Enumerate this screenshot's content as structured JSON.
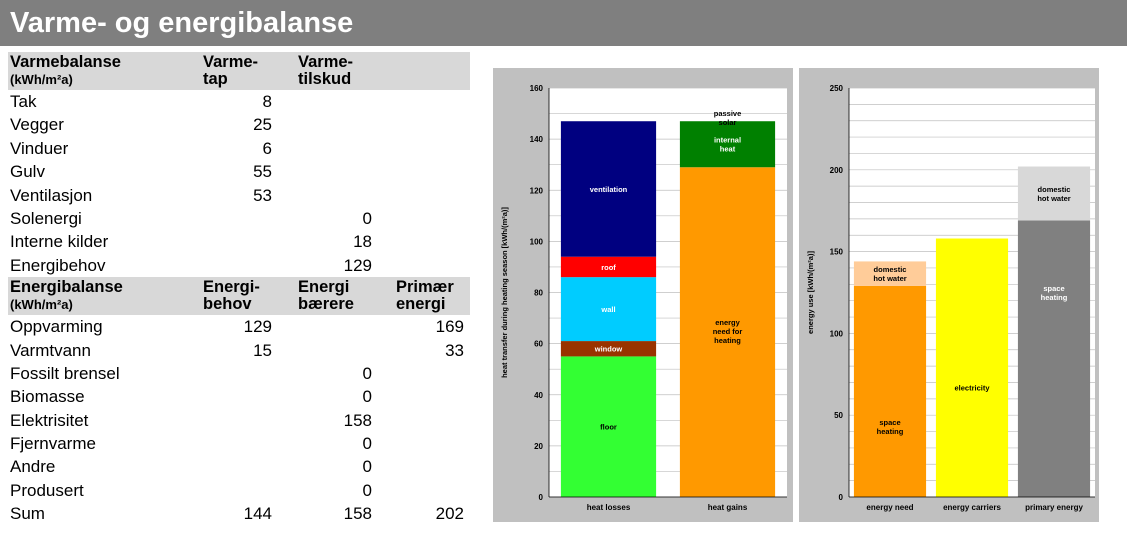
{
  "title": "Varme- og energibalanse",
  "heat_table": {
    "header": {
      "col0": "Varmebalanse",
      "col0_sub": "(kWh/m²a)",
      "col1a": "Varme-",
      "col1b": "tap",
      "col2a": "Varme-",
      "col2b": "tilskud"
    },
    "rows": [
      {
        "label": "Tak",
        "tap": "8",
        "tilskud": ""
      },
      {
        "label": "Vegger",
        "tap": "25",
        "tilskud": ""
      },
      {
        "label": "Vinduer",
        "tap": "6",
        "tilskud": ""
      },
      {
        "label": "Gulv",
        "tap": "55",
        "tilskud": ""
      },
      {
        "label": "Ventilasjon",
        "tap": "53",
        "tilskud": ""
      },
      {
        "label": "Solenergi",
        "tap": "",
        "tilskud": "0"
      },
      {
        "label": "Interne kilder",
        "tap": "",
        "tilskud": "18"
      },
      {
        "label": "Energibehov",
        "tap": "",
        "tilskud": "129"
      }
    ]
  },
  "energy_table": {
    "header": {
      "col0": "Energibalanse",
      "col0_sub": "(kWh/m²a)",
      "col1a": "Energi-",
      "col1b": "behov",
      "col2a": "Energi",
      "col2b": "bærere",
      "col3a": "Primær",
      "col3b": "energi"
    },
    "rows": [
      {
        "label": "Oppvarming",
        "behov": "129",
        "baerere": "",
        "primaer": "169"
      },
      {
        "label": "Varmtvann",
        "behov": "15",
        "baerere": "",
        "primaer": "33"
      },
      {
        "label": "Fossilt brensel",
        "behov": "",
        "baerere": "0",
        "primaer": ""
      },
      {
        "label": "Biomasse",
        "behov": "",
        "baerere": "0",
        "primaer": ""
      },
      {
        "label": "Elektrisitet",
        "behov": "",
        "baerere": "158",
        "primaer": ""
      },
      {
        "label": "Fjernvarme",
        "behov": "",
        "baerere": "0",
        "primaer": ""
      },
      {
        "label": "Andre",
        "behov": "",
        "baerere": "0",
        "primaer": ""
      },
      {
        "label": "Produsert",
        "behov": "",
        "baerere": "0",
        "primaer": ""
      },
      {
        "label": "Sum",
        "behov": "144",
        "baerere": "158",
        "primaer": "202"
      }
    ]
  },
  "chart_data": [
    {
      "type": "bar",
      "stacked": true,
      "ylabel": "heat transfer during heating season [kWh/(m²a)]",
      "ylim": [
        0,
        160
      ],
      "yticks": [
        0,
        20,
        40,
        60,
        80,
        100,
        120,
        140,
        160
      ],
      "grid": true,
      "categories": [
        "heat losses",
        "heat gains"
      ],
      "series": [
        {
          "name": "floor",
          "category": "heat losses",
          "value": 55,
          "color": "#33ff33"
        },
        {
          "name": "window",
          "category": "heat losses",
          "value": 6,
          "color": "#993300"
        },
        {
          "name": "wall",
          "category": "heat losses",
          "value": 25,
          "color": "#00ccff"
        },
        {
          "name": "roof",
          "category": "heat losses",
          "value": 8,
          "color": "#ff0000"
        },
        {
          "name": "ventilation",
          "category": "heat losses",
          "value": 53,
          "color": "#000080"
        },
        {
          "name": "energy need for heating",
          "category": "heat gains",
          "value": 129,
          "color": "#ff9900"
        },
        {
          "name": "internal heat",
          "category": "heat gains",
          "value": 18,
          "color": "#008000"
        },
        {
          "name": "passive solar",
          "category": "heat gains",
          "value": 0,
          "color": "#339966"
        }
      ]
    },
    {
      "type": "bar",
      "stacked": true,
      "ylabel": "energy use [kWh/(m²a)]",
      "ylim": [
        0,
        250
      ],
      "yticks": [
        0,
        50,
        100,
        150,
        200,
        250
      ],
      "grid": true,
      "categories": [
        "energy need",
        "energy carriers",
        "primary energy"
      ],
      "series": [
        {
          "name": "space heating",
          "category": "energy need",
          "value": 129,
          "color": "#ff9900"
        },
        {
          "name": "domestic hot water",
          "category": "energy need",
          "value": 15,
          "color": "#ffcc99"
        },
        {
          "name": "electricity",
          "category": "energy carriers",
          "value": 158,
          "color": "#ffff00"
        },
        {
          "name": "space heating",
          "category": "primary energy",
          "value": 169,
          "color": "#808080"
        },
        {
          "name": "domestic hot water",
          "category": "primary energy",
          "value": 33,
          "color": "#d8d8d8"
        }
      ]
    }
  ]
}
